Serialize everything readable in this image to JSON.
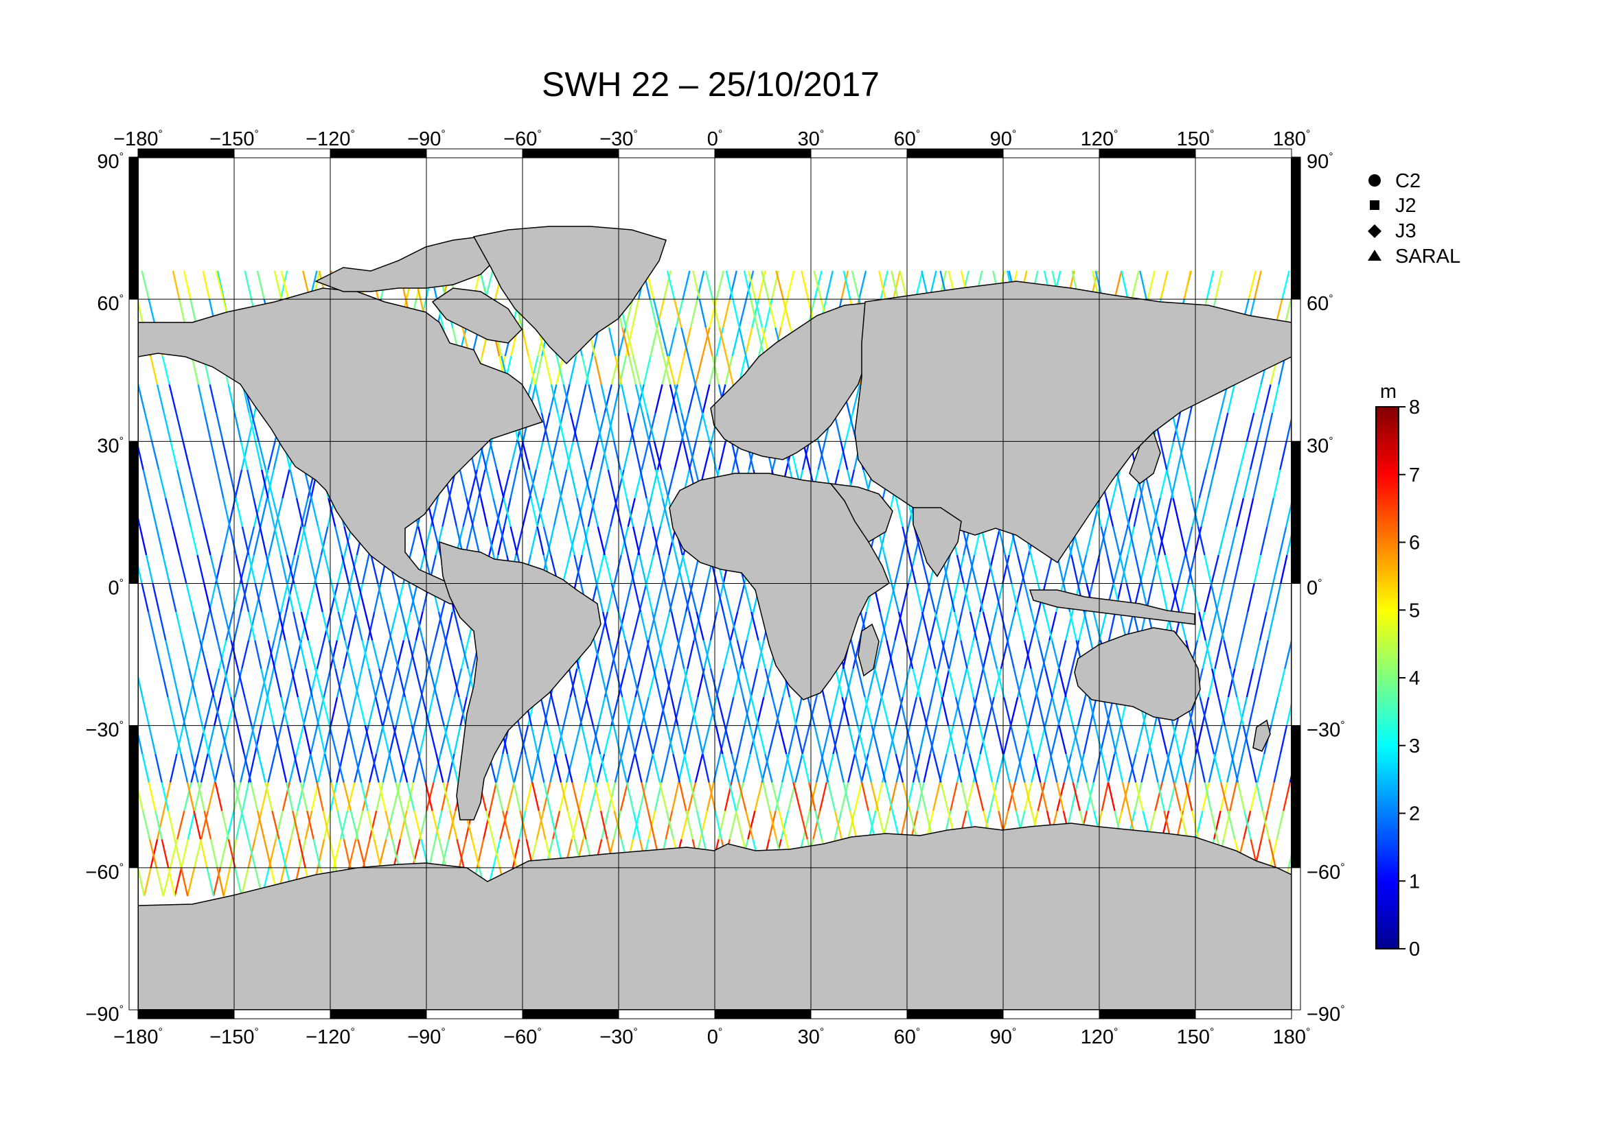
{
  "title": "SWH 22 – 25/10/2017",
  "chart_data": {
    "type": "scatter",
    "projection": "equirectangular",
    "title": "SWH 22 – 25/10/2017",
    "x_ticks": [
      -180,
      -150,
      -120,
      -90,
      -60,
      -30,
      0,
      30,
      60,
      90,
      120,
      150,
      180
    ],
    "y_ticks": [
      90,
      60,
      30,
      0,
      -30,
      -60,
      -90
    ],
    "x_tick_labels": [
      "−180",
      "−150",
      "−120",
      "−90",
      "−60",
      "−30",
      "0",
      "30",
      "60",
      "90",
      "120",
      "150",
      "180"
    ],
    "y_tick_labels": [
      "90",
      "60",
      "30",
      "0",
      "−30",
      "−60",
      "−90"
    ],
    "xlim": [
      -180,
      180
    ],
    "ylim": [
      -90,
      90
    ],
    "grid": true,
    "legend": {
      "position": "top-right",
      "entries": [
        {
          "name": "C2",
          "marker": "circle"
        },
        {
          "name": "J2",
          "marker": "square"
        },
        {
          "name": "J3",
          "marker": "diamond"
        },
        {
          "name": "SARAL",
          "marker": "triangle"
        }
      ]
    },
    "colorbar": {
      "unit": "m",
      "min": 0,
      "max": 8,
      "ticks": [
        "0",
        "1",
        "2",
        "3",
        "4",
        "5",
        "6",
        "7",
        "8"
      ],
      "colormap": [
        "#00008f",
        "#0000ff",
        "#0080ff",
        "#00ffff",
        "#80ff80",
        "#ffff00",
        "#ff8000",
        "#ff0000",
        "#800000"
      ]
    },
    "land_color": "#c0c0c0",
    "ocean_color": "#ffffff",
    "data_coverage_lat": [
      -66,
      66
    ],
    "track_swh_bands_m": [
      {
        "lat_range": [
          -66,
          -40
        ],
        "typical_swh_m": [
          3,
          7
        ]
      },
      {
        "lat_range": [
          -40,
          40
        ],
        "typical_swh_m": [
          1,
          3
        ]
      },
      {
        "lat_range": [
          40,
          66
        ],
        "typical_swh_m": [
          2,
          6
        ]
      }
    ]
  }
}
